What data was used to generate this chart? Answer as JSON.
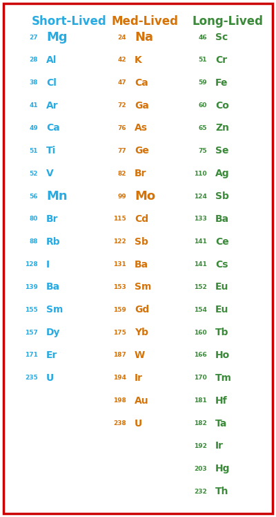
{
  "title_short": "Short-Lived",
  "title_med": "Med-Lived",
  "title_long": "Long-Lived",
  "color_short": "#29ABE2",
  "color_med": "#D4730A",
  "color_long": "#3A8A3A",
  "border_color": "#CC0000",
  "bg_color": "#FFFFFF",
  "short_lived": [
    [
      "27",
      "Mg"
    ],
    [
      "28",
      "Al"
    ],
    [
      "38",
      "Cl"
    ],
    [
      "41",
      "Ar"
    ],
    [
      "49",
      "Ca"
    ],
    [
      "51",
      "Ti"
    ],
    [
      "52",
      "V"
    ],
    [
      "56",
      "Mn"
    ],
    [
      "80",
      "Br"
    ],
    [
      "88",
      "Rb"
    ],
    [
      "128",
      "I"
    ],
    [
      "139",
      "Ba"
    ],
    [
      "155",
      "Sm"
    ],
    [
      "157",
      "Dy"
    ],
    [
      "171",
      "Er"
    ],
    [
      "235",
      "U"
    ]
  ],
  "med_lived": [
    [
      "24",
      "Na"
    ],
    [
      "42",
      "K"
    ],
    [
      "47",
      "Ca"
    ],
    [
      "72",
      "Ga"
    ],
    [
      "76",
      "As"
    ],
    [
      "77",
      "Ge"
    ],
    [
      "82",
      "Br"
    ],
    [
      "99",
      "Mo"
    ],
    [
      "115",
      "Cd"
    ],
    [
      "122",
      "Sb"
    ],
    [
      "131",
      "Ba"
    ],
    [
      "153",
      "Sm"
    ],
    [
      "159",
      "Gd"
    ],
    [
      "175",
      "Yb"
    ],
    [
      "187",
      "W"
    ],
    [
      "194",
      "Ir"
    ],
    [
      "198",
      "Au"
    ],
    [
      "238",
      "U"
    ]
  ],
  "long_lived": [
    [
      "46",
      "Sc"
    ],
    [
      "51",
      "Cr"
    ],
    [
      "59",
      "Fe"
    ],
    [
      "60",
      "Co"
    ],
    [
      "65",
      "Zn"
    ],
    [
      "75",
      "Se"
    ],
    [
      "110",
      "Ag"
    ],
    [
      "124",
      "Sb"
    ],
    [
      "133",
      "Ba"
    ],
    [
      "141",
      "Ce"
    ],
    [
      "141",
      "Cs"
    ],
    [
      "152",
      "Eu"
    ],
    [
      "154",
      "Eu"
    ],
    [
      "160",
      "Tb"
    ],
    [
      "166",
      "Ho"
    ],
    [
      "170",
      "Tm"
    ],
    [
      "181",
      "Hf"
    ],
    [
      "182",
      "Ta"
    ],
    [
      "192",
      "Ir"
    ],
    [
      "203",
      "Hg"
    ],
    [
      "232",
      "Th"
    ]
  ],
  "num_fontsize": 6.5,
  "elem_fontsize": 10,
  "elem_fontsize_large": 13,
  "large_elements_short": [
    "Mg",
    "Mn"
  ],
  "large_elements_med": [
    "Na",
    "Mo"
  ],
  "large_elements_long": [],
  "header_fontsize": 12
}
